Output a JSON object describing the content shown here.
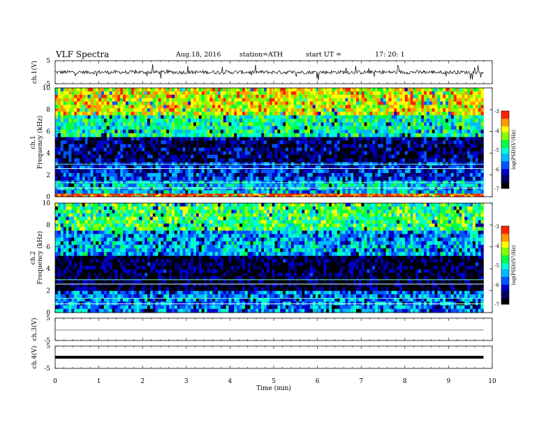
{
  "header": {
    "title": "VLF Spectra",
    "date": "Aug.18, 2016",
    "station": "station=ATH",
    "start": "start UT =",
    "start_time": "17: 20: 1"
  },
  "chart_data": [
    {
      "type": "line",
      "panel": "ch1-waveform",
      "ylabel": "ch.1(V)",
      "yticks": [
        "5",
        "-5"
      ],
      "ylim": [
        -5,
        5
      ],
      "xlim": [
        0,
        10
      ],
      "data_end": 9.8,
      "series": [
        {
          "values_description_free": true,
          "baseline": 0.0,
          "noise_amplitude": 1.0
        }
      ]
    },
    {
      "type": "heatmap",
      "panel": "ch1-spectrogram",
      "ylabel": "Frequency (kHz)",
      "ylabel_prefix": "ch.1",
      "yticks": [
        "0",
        "2",
        "4",
        "6",
        "8",
        "10"
      ],
      "ylim": [
        0,
        10
      ],
      "xlim": [
        0,
        10
      ],
      "colorbar": {
        "label": "log(PSD)(V²/Hz)",
        "ticks": [
          "-3",
          "-4",
          "-5",
          "-6",
          "-7"
        ],
        "range": [
          -7,
          -3
        ]
      },
      "bands": [
        {
          "from": 0.0,
          "to": 0.3,
          "level": -3.2
        },
        {
          "from": 0.3,
          "to": 1.5,
          "level": -5.3
        },
        {
          "from": 1.5,
          "to": 3.2,
          "level": -5.9
        },
        {
          "from": 3.2,
          "to": 5.5,
          "level": -6.4
        },
        {
          "from": 5.5,
          "to": 7.5,
          "level": -4.9
        },
        {
          "from": 7.5,
          "to": 10.0,
          "level": -3.9
        }
      ]
    },
    {
      "type": "heatmap",
      "panel": "ch2-spectrogram",
      "ylabel": "Frequency (kHz)",
      "ylabel_prefix": "ch.2",
      "yticks": [
        "0",
        "2",
        "4",
        "6",
        "8",
        "10"
      ],
      "ylim": [
        0,
        10
      ],
      "xlim": [
        0,
        10
      ],
      "colorbar": {
        "label": "log(PSD)(V²/Hz)",
        "ticks": [
          "-3",
          "-4",
          "-5",
          "-6",
          "-7"
        ],
        "range": [
          -7,
          -3
        ]
      },
      "bands": [
        {
          "from": 0.0,
          "to": 2.0,
          "level": -5.6
        },
        {
          "from": 2.0,
          "to": 3.0,
          "level": -6.7
        },
        {
          "from": 3.0,
          "to": 5.2,
          "level": -6.6
        },
        {
          "from": 5.2,
          "to": 7.5,
          "level": -5.4
        },
        {
          "from": 7.5,
          "to": 10.0,
          "level": -4.6
        }
      ]
    },
    {
      "type": "line",
      "panel": "ch3-waveform",
      "ylabel": "ch.3(V)",
      "yticks": [
        "5",
        "-5"
      ],
      "ylim": [
        -5,
        5
      ],
      "xlim": [
        0,
        10
      ],
      "series": [
        {
          "constant": 0
        }
      ]
    },
    {
      "type": "line",
      "panel": "ch4-waveform",
      "ylabel": "ch.4(V)",
      "yticks": [
        "5",
        "-5"
      ],
      "ylim": [
        -5,
        5
      ],
      "xlim": [
        0,
        10
      ],
      "series": [
        {
          "constant": 0
        }
      ]
    }
  ],
  "x_axis": {
    "label": "Time (min)",
    "ticks": [
      "0",
      "1",
      "2",
      "3",
      "4",
      "5",
      "6",
      "7",
      "8",
      "9",
      "10"
    ]
  },
  "colors": {
    "colormap": [
      "#000000",
      "#000066",
      "#0000cc",
      "#0055ff",
      "#00bbff",
      "#00ffcc",
      "#00ff44",
      "#88ff00",
      "#ffff00",
      "#ff9900",
      "#ff2200",
      "#ffffff"
    ]
  }
}
